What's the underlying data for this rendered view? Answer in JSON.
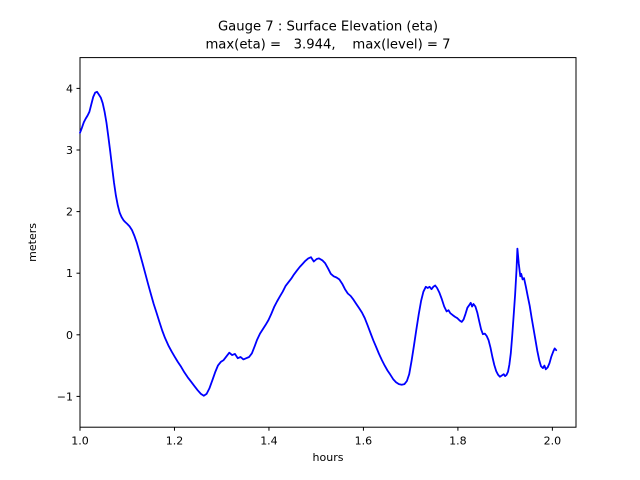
{
  "figure": {
    "background": "#ffffff",
    "text_color": "#000000"
  },
  "chart_data": {
    "type": "line",
    "title_line1": "Gauge 7 : Surface Elevation (eta)",
    "title_line2": "max(eta) =   3.944,    max(level) = 7",
    "xlabel": "hours",
    "ylabel": "meters",
    "xlim": [
      1.0,
      2.05
    ],
    "ylim": [
      -1.5,
      4.5
    ],
    "grid": false,
    "legend_position": "none",
    "line_color": "#0000ff",
    "line_width": 1.8,
    "max_eta": 3.944,
    "max_level": 7,
    "x_ticks": [
      {
        "v": 1.0,
        "label": "1.0"
      },
      {
        "v": 1.2,
        "label": "1.2"
      },
      {
        "v": 1.4,
        "label": "1.4"
      },
      {
        "v": 1.6,
        "label": "1.6"
      },
      {
        "v": 1.8,
        "label": "1.8"
      },
      {
        "v": 2.0,
        "label": "2.0"
      }
    ],
    "y_ticks": [
      {
        "v": -1,
        "label": "−1"
      },
      {
        "v": 0,
        "label": "0"
      },
      {
        "v": 1,
        "label": "1"
      },
      {
        "v": 2,
        "label": "2"
      },
      {
        "v": 3,
        "label": "3"
      },
      {
        "v": 4,
        "label": "4"
      }
    ],
    "series": [
      {
        "name": "eta",
        "points": [
          [
            1.0,
            3.28
          ],
          [
            1.004,
            3.36
          ],
          [
            1.008,
            3.45
          ],
          [
            1.012,
            3.51
          ],
          [
            1.016,
            3.56
          ],
          [
            1.02,
            3.62
          ],
          [
            1.024,
            3.74
          ],
          [
            1.028,
            3.86
          ],
          [
            1.032,
            3.93
          ],
          [
            1.036,
            3.944
          ],
          [
            1.04,
            3.9
          ],
          [
            1.044,
            3.85
          ],
          [
            1.048,
            3.76
          ],
          [
            1.052,
            3.62
          ],
          [
            1.056,
            3.44
          ],
          [
            1.06,
            3.22
          ],
          [
            1.064,
            2.98
          ],
          [
            1.068,
            2.72
          ],
          [
            1.072,
            2.47
          ],
          [
            1.076,
            2.26
          ],
          [
            1.08,
            2.1
          ],
          [
            1.084,
            1.98
          ],
          [
            1.088,
            1.91
          ],
          [
            1.092,
            1.86
          ],
          [
            1.096,
            1.83
          ],
          [
            1.1,
            1.8
          ],
          [
            1.105,
            1.76
          ],
          [
            1.11,
            1.7
          ],
          [
            1.115,
            1.61
          ],
          [
            1.12,
            1.5
          ],
          [
            1.126,
            1.34
          ],
          [
            1.132,
            1.17
          ],
          [
            1.138,
            1.0
          ],
          [
            1.144,
            0.83
          ],
          [
            1.15,
            0.66
          ],
          [
            1.156,
            0.5
          ],
          [
            1.162,
            0.36
          ],
          [
            1.168,
            0.21
          ],
          [
            1.174,
            0.07
          ],
          [
            1.18,
            -0.05
          ],
          [
            1.187,
            -0.17
          ],
          [
            1.194,
            -0.27
          ],
          [
            1.2,
            -0.35
          ],
          [
            1.207,
            -0.44
          ],
          [
            1.214,
            -0.52
          ],
          [
            1.221,
            -0.61
          ],
          [
            1.228,
            -0.69
          ],
          [
            1.235,
            -0.76
          ],
          [
            1.242,
            -0.83
          ],
          [
            1.249,
            -0.9
          ],
          [
            1.256,
            -0.96
          ],
          [
            1.262,
            -0.99
          ],
          [
            1.268,
            -0.96
          ],
          [
            1.274,
            -0.87
          ],
          [
            1.28,
            -0.74
          ],
          [
            1.286,
            -0.61
          ],
          [
            1.292,
            -0.5
          ],
          [
            1.298,
            -0.44
          ],
          [
            1.304,
            -0.41
          ],
          [
            1.31,
            -0.35
          ],
          [
            1.316,
            -0.29
          ],
          [
            1.322,
            -0.33
          ],
          [
            1.328,
            -0.31
          ],
          [
            1.334,
            -0.38
          ],
          [
            1.34,
            -0.36
          ],
          [
            1.346,
            -0.4
          ],
          [
            1.352,
            -0.38
          ],
          [
            1.358,
            -0.36
          ],
          [
            1.364,
            -0.3
          ],
          [
            1.37,
            -0.18
          ],
          [
            1.375,
            -0.08
          ],
          [
            1.381,
            0.02
          ],
          [
            1.387,
            0.09
          ],
          [
            1.393,
            0.16
          ],
          [
            1.399,
            0.24
          ],
          [
            1.405,
            0.34
          ],
          [
            1.411,
            0.45
          ],
          [
            1.417,
            0.54
          ],
          [
            1.423,
            0.62
          ],
          [
            1.429,
            0.7
          ],
          [
            1.435,
            0.79
          ],
          [
            1.441,
            0.85
          ],
          [
            1.447,
            0.91
          ],
          [
            1.453,
            0.98
          ],
          [
            1.459,
            1.04
          ],
          [
            1.465,
            1.1
          ],
          [
            1.471,
            1.15
          ],
          [
            1.477,
            1.2
          ],
          [
            1.483,
            1.24
          ],
          [
            1.489,
            1.26
          ],
          [
            1.495,
            1.19
          ],
          [
            1.501,
            1.23
          ],
          [
            1.506,
            1.24
          ],
          [
            1.513,
            1.21
          ],
          [
            1.519,
            1.16
          ],
          [
            1.525,
            1.08
          ],
          [
            1.531,
            0.99
          ],
          [
            1.537,
            0.95
          ],
          [
            1.543,
            0.93
          ],
          [
            1.549,
            0.9
          ],
          [
            1.555,
            0.83
          ],
          [
            1.561,
            0.74
          ],
          [
            1.567,
            0.67
          ],
          [
            1.573,
            0.63
          ],
          [
            1.579,
            0.57
          ],
          [
            1.585,
            0.5
          ],
          [
            1.591,
            0.43
          ],
          [
            1.597,
            0.36
          ],
          [
            1.603,
            0.27
          ],
          [
            1.609,
            0.15
          ],
          [
            1.615,
            0.03
          ],
          [
            1.621,
            -0.09
          ],
          [
            1.627,
            -0.2
          ],
          [
            1.633,
            -0.31
          ],
          [
            1.639,
            -0.41
          ],
          [
            1.645,
            -0.5
          ],
          [
            1.651,
            -0.58
          ],
          [
            1.657,
            -0.65
          ],
          [
            1.663,
            -0.72
          ],
          [
            1.669,
            -0.77
          ],
          [
            1.675,
            -0.8
          ],
          [
            1.681,
            -0.81
          ],
          [
            1.687,
            -0.8
          ],
          [
            1.692,
            -0.75
          ],
          [
            1.697,
            -0.64
          ],
          [
            1.702,
            -0.42
          ],
          [
            1.707,
            -0.17
          ],
          [
            1.712,
            0.08
          ],
          [
            1.717,
            0.33
          ],
          [
            1.722,
            0.55
          ],
          [
            1.727,
            0.7
          ],
          [
            1.732,
            0.78
          ],
          [
            1.736,
            0.76
          ],
          [
            1.74,
            0.78
          ],
          [
            1.744,
            0.74
          ],
          [
            1.748,
            0.78
          ],
          [
            1.752,
            0.8
          ],
          [
            1.756,
            0.76
          ],
          [
            1.761,
            0.68
          ],
          [
            1.766,
            0.58
          ],
          [
            1.771,
            0.46
          ],
          [
            1.776,
            0.38
          ],
          [
            1.78,
            0.4
          ],
          [
            1.784,
            0.35
          ],
          [
            1.789,
            0.32
          ],
          [
            1.794,
            0.29
          ],
          [
            1.799,
            0.27
          ],
          [
            1.804,
            0.23
          ],
          [
            1.808,
            0.21
          ],
          [
            1.812,
            0.25
          ],
          [
            1.816,
            0.34
          ],
          [
            1.82,
            0.44
          ],
          [
            1.824,
            0.48
          ],
          [
            1.827,
            0.52
          ],
          [
            1.83,
            0.46
          ],
          [
            1.833,
            0.5
          ],
          [
            1.837,
            0.46
          ],
          [
            1.841,
            0.36
          ],
          [
            1.845,
            0.22
          ],
          [
            1.849,
            0.09
          ],
          [
            1.853,
            0.01
          ],
          [
            1.857,
            0.02
          ],
          [
            1.861,
            -0.02
          ],
          [
            1.865,
            -0.09
          ],
          [
            1.869,
            -0.21
          ],
          [
            1.873,
            -0.36
          ],
          [
            1.877,
            -0.49
          ],
          [
            1.881,
            -0.59
          ],
          [
            1.885,
            -0.65
          ],
          [
            1.889,
            -0.68
          ],
          [
            1.893,
            -0.66
          ],
          [
            1.897,
            -0.64
          ],
          [
            1.9,
            -0.67
          ],
          [
            1.903,
            -0.65
          ],
          [
            1.906,
            -0.6
          ],
          [
            1.909,
            -0.48
          ],
          [
            1.912,
            -0.3
          ],
          [
            1.915,
            -0.02
          ],
          [
            1.918,
            0.3
          ],
          [
            1.921,
            0.65
          ],
          [
            1.924,
            1.05
          ],
          [
            1.926,
            1.4
          ],
          [
            1.929,
            1.15
          ],
          [
            1.932,
            0.95
          ],
          [
            1.934,
            0.99
          ],
          [
            1.937,
            0.9
          ],
          [
            1.94,
            0.92
          ],
          [
            1.944,
            0.78
          ],
          [
            1.948,
            0.62
          ],
          [
            1.952,
            0.47
          ],
          [
            1.956,
            0.28
          ],
          [
            1.96,
            0.1
          ],
          [
            1.964,
            -0.08
          ],
          [
            1.968,
            -0.26
          ],
          [
            1.972,
            -0.41
          ],
          [
            1.976,
            -0.51
          ],
          [
            1.98,
            -0.54
          ],
          [
            1.983,
            -0.5
          ],
          [
            1.986,
            -0.56
          ],
          [
            1.99,
            -0.53
          ],
          [
            1.994,
            -0.46
          ],
          [
            1.998,
            -0.35
          ],
          [
            2.002,
            -0.27
          ],
          [
            2.005,
            -0.22
          ],
          [
            2.008,
            -0.25
          ]
        ]
      }
    ]
  }
}
